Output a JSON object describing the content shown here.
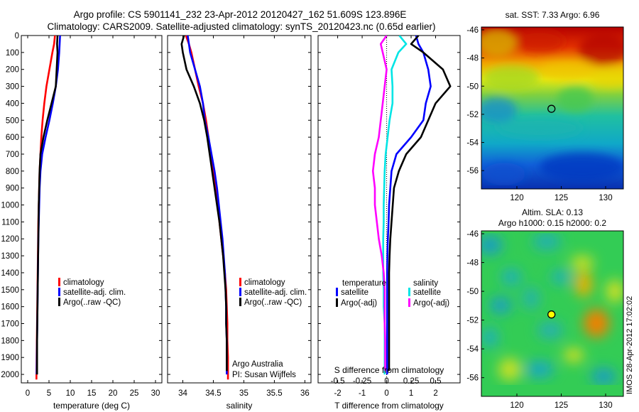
{
  "header": {
    "line1": "Argo profile: CS 5901141_232 23-Apr-2012 20120427_162 51.609S 123.896E",
    "line2": "Climatology: CARS2009. Satellite-adjusted climatology: synTS_20120423.nc (0.65d earlier)"
  },
  "chart_data": [
    {
      "type": "line",
      "panel": "temperature",
      "xlabel": "temperature (deg C)",
      "xlim": [
        -1.5,
        31.5
      ],
      "xticks": [
        0,
        5,
        10,
        15,
        20,
        25,
        30
      ],
      "ylim": [
        0,
        2050
      ],
      "yticks": [
        0,
        100,
        200,
        300,
        400,
        500,
        600,
        700,
        800,
        900,
        1000,
        1100,
        1200,
        1300,
        1400,
        1500,
        1600,
        1700,
        1800,
        1900,
        2000
      ],
      "legend": {
        "position": "lower-center",
        "entries": [
          "climatology",
          "satellite-adj. clim.",
          "Argo(..raw -QC)"
        ]
      },
      "series": [
        {
          "name": "climatology",
          "color": "#ff0000",
          "x": [
            6.4,
            6.2,
            5.8,
            5.1,
            4.4,
            3.9,
            3.5,
            3.2,
            3.0,
            2.8,
            2.7,
            2.6,
            2.5,
            2.45,
            2.4,
            2.35,
            2.3,
            2.25,
            2.2,
            2.15,
            2.1,
            2.05
          ],
          "y": [
            0,
            50,
            100,
            200,
            300,
            400,
            500,
            600,
            700,
            800,
            900,
            1000,
            1100,
            1200,
            1300,
            1400,
            1500,
            1600,
            1700,
            1800,
            1900,
            2030
          ]
        },
        {
          "name": "satellite-adj. clim.",
          "color": "#0000ff",
          "x": [
            7.6,
            7.5,
            7.4,
            7.1,
            6.6,
            5.9,
            5.1,
            4.2,
            3.4,
            3.0,
            2.8,
            2.7,
            2.6,
            2.5,
            2.45,
            2.4,
            2.35,
            2.3,
            2.25,
            2.2,
            2.15,
            2.1
          ],
          "y": [
            0,
            50,
            100,
            200,
            300,
            400,
            500,
            600,
            700,
            800,
            900,
            1000,
            1100,
            1200,
            1300,
            1400,
            1500,
            1600,
            1700,
            1800,
            1900,
            2000
          ]
        },
        {
          "name": "Argo(..raw -QC)",
          "color": "#000000",
          "x": [
            7.0,
            6.9,
            7.0,
            6.8,
            6.6,
            5.6,
            4.6,
            3.7,
            3.0,
            2.8,
            2.7,
            2.6,
            2.55,
            2.5,
            2.45,
            2.4,
            2.35,
            2.3,
            2.25,
            2.2,
            2.2
          ],
          "y": [
            0,
            50,
            100,
            200,
            300,
            400,
            500,
            600,
            700,
            800,
            900,
            1000,
            1100,
            1200,
            1300,
            1400,
            1500,
            1600,
            1700,
            1800,
            2000
          ]
        }
      ]
    },
    {
      "type": "line",
      "panel": "salinity",
      "xlabel": "salinity",
      "xlim": [
        33.75,
        36.1
      ],
      "xticks": [
        34,
        34.5,
        35,
        35.5,
        36
      ],
      "ylim": [
        0,
        2050
      ],
      "legend": {
        "position": "lower-center",
        "entries": [
          "climatology",
          "satellite-adj. clim.",
          "Argo(..raw -QC)"
        ]
      },
      "annotation": [
        "Argo Australia",
        "PI: Susan Wijffels"
      ],
      "series": [
        {
          "name": "climatology",
          "color": "#ff0000",
          "x": [
            34.05,
            34.1,
            34.14,
            34.2,
            34.26,
            34.33,
            34.38,
            34.42,
            34.46,
            34.5,
            34.54,
            34.57,
            34.6,
            34.63,
            34.66,
            34.69,
            34.71,
            34.72,
            34.73,
            34.73,
            34.74,
            34.74
          ],
          "y": [
            0,
            50,
            100,
            200,
            300,
            400,
            500,
            600,
            700,
            800,
            900,
            1000,
            1100,
            1200,
            1300,
            1400,
            1500,
            1600,
            1700,
            1800,
            1900,
            2030
          ]
        },
        {
          "name": "satellite-adj. clim.",
          "color": "#0000ff",
          "x": [
            34.08,
            34.1,
            34.12,
            34.2,
            34.28,
            34.33,
            34.36,
            34.42,
            34.47,
            34.52,
            34.56,
            34.59,
            34.62,
            34.65,
            34.67,
            34.69,
            34.7,
            34.71,
            34.71,
            34.72,
            34.72,
            34.72
          ],
          "y": [
            0,
            50,
            100,
            200,
            300,
            400,
            500,
            600,
            700,
            800,
            900,
            1000,
            1100,
            1200,
            1300,
            1400,
            1500,
            1600,
            1700,
            1800,
            1900,
            2000
          ]
        },
        {
          "name": "Argo(..raw -QC)",
          "color": "#000000",
          "x": [
            34.02,
            33.98,
            34.0,
            34.06,
            34.18,
            34.28,
            34.35,
            34.4,
            34.44,
            34.48,
            34.52,
            34.56,
            34.6,
            34.63,
            34.66,
            34.68,
            34.7,
            34.71,
            34.71,
            34.72,
            34.72
          ],
          "y": [
            0,
            50,
            100,
            200,
            300,
            400,
            500,
            600,
            700,
            800,
            900,
            1000,
            1100,
            1200,
            1300,
            1400,
            1500,
            1600,
            1700,
            1800,
            1980
          ]
        }
      ]
    },
    {
      "type": "line",
      "panel": "differences",
      "xlabel": "T difference from climatology",
      "xlim": [
        -2.8,
        3.0
      ],
      "xticks": [
        -2,
        -1,
        0,
        1,
        2
      ],
      "top_axis": {
        "label": "S difference from climatology",
        "ticks": [
          "-0.5",
          "-0.25",
          "0",
          "0.25",
          "0.5"
        ],
        "values": [
          -0.5,
          -0.25,
          0,
          0.25,
          0.5
        ]
      },
      "ylim": [
        0,
        2050
      ],
      "legend": {
        "position": "lower-center",
        "headers": [
          "temperature",
          "salinity"
        ],
        "entries": [
          "satellite",
          "Argo(-adj)",
          "satellite",
          "Argo(-adj)"
        ]
      },
      "series": [
        {
          "name": "temperature satellite",
          "color": "#0000ff",
          "x": [
            1.2,
            1.3,
            1.5,
            1.7,
            1.8,
            1.6,
            1.5,
            1.0,
            0.4,
            0.2,
            0.15,
            0.1,
            0.08,
            0.05,
            0.03,
            0.02,
            0.02,
            0.02,
            0.02,
            0.02,
            0.02,
            0.02
          ],
          "y": [
            0,
            50,
            100,
            200,
            300,
            400,
            500,
            600,
            700,
            800,
            900,
            1000,
            1100,
            1200,
            1300,
            1400,
            1500,
            1600,
            1700,
            1800,
            1900,
            2000
          ]
        },
        {
          "name": "temperature Argo(-adj)",
          "color": "#000000",
          "x": [
            1.3,
            1.0,
            1.5,
            2.3,
            2.6,
            2.0,
            1.7,
            1.4,
            0.8,
            0.5,
            0.3,
            0.25,
            0.2,
            0.15,
            0.12,
            0.1,
            0.1,
            0.1,
            0.1,
            0.1,
            0.1
          ],
          "y": [
            0,
            50,
            100,
            200,
            300,
            400,
            500,
            600,
            700,
            800,
            900,
            1000,
            1100,
            1200,
            1300,
            1400,
            1500,
            1600,
            1700,
            1800,
            1980
          ]
        },
        {
          "name": "salinity satellite",
          "color": "#00e5e5",
          "x": [
            0.13,
            0.2,
            0.12,
            0.05,
            0.06,
            0.06,
            0.03,
            0.01,
            -0.01,
            -0.02,
            -0.025,
            -0.03,
            -0.03,
            -0.035,
            -0.035,
            -0.035,
            -0.03,
            -0.03,
            -0.02,
            -0.02,
            -0.02,
            -0.02
          ],
          "y": [
            0,
            50,
            100,
            200,
            300,
            400,
            500,
            600,
            700,
            800,
            900,
            1000,
            1100,
            1200,
            1300,
            1400,
            1500,
            1600,
            1700,
            1800,
            1900,
            2000
          ]
        },
        {
          "name": "salinity Argo(-adj)",
          "color": "#ff00ff",
          "x": [
            0.0,
            -0.06,
            -0.04,
            0.0,
            -0.02,
            -0.04,
            -0.06,
            -0.08,
            -0.12,
            -0.14,
            -0.12,
            -0.12,
            -0.1,
            -0.08,
            -0.05,
            -0.03,
            -0.02,
            -0.02,
            -0.02,
            -0.015,
            -0.015
          ],
          "y": [
            0,
            50,
            100,
            200,
            300,
            400,
            500,
            600,
            700,
            800,
            900,
            1000,
            1100,
            1200,
            1300,
            1400,
            1500,
            1600,
            1700,
            1800,
            1980
          ]
        }
      ]
    },
    {
      "type": "heatmap",
      "panel": "sst-map",
      "title": "sat. SST: 7.33 Argo: 6.96",
      "xlim": [
        116,
        132
      ],
      "ylim": [
        -57.3,
        -45.8
      ],
      "xticks": [
        120,
        125,
        130
      ],
      "yticks": [
        -46,
        -48,
        -50,
        -52,
        -54,
        -56
      ],
      "marker": {
        "lon": 123.896,
        "lat": -51.609
      }
    },
    {
      "type": "heatmap",
      "panel": "sla-map",
      "title": [
        "Altim. SLA: 0.13",
        "Argo h1000: 0.15 h2000: 0.2"
      ],
      "xlim": [
        116,
        132
      ],
      "ylim": [
        -57.3,
        -45.8
      ],
      "xticks": [
        120,
        125,
        130
      ],
      "yticks": [
        -46,
        -48,
        -50,
        -52,
        -54,
        -56
      ],
      "marker": {
        "lon": 123.896,
        "lat": -51.609
      },
      "side_note": "IMOS 28-Apr-2012 17:02:02"
    }
  ]
}
